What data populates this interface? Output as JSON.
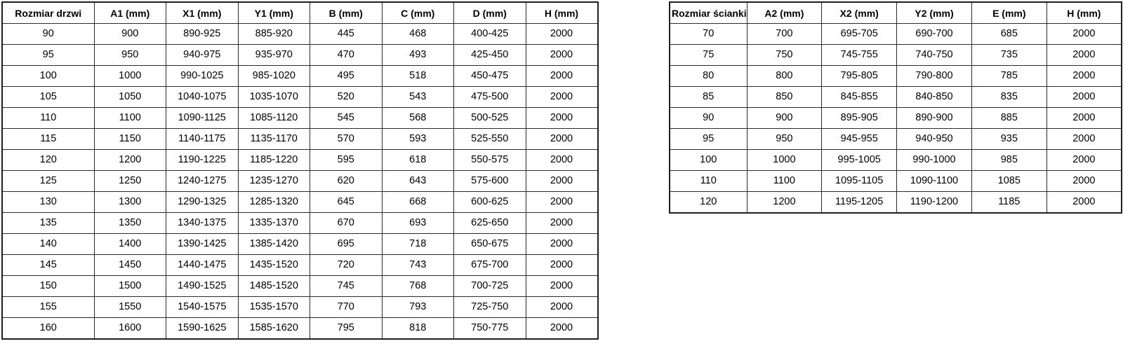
{
  "colors": {
    "background": "#ffffff",
    "border": "#2b2b2b",
    "outer_border": "#1f1f1f",
    "text": "#000000"
  },
  "door_table": {
    "headers": [
      "Rozmiar drzwi",
      "A1 (mm)",
      "X1 (mm)",
      "Y1 (mm)",
      "B (mm)",
      "C (mm)",
      "D (mm)",
      "H (mm)"
    ],
    "rows": [
      [
        "90",
        "900",
        "890-925",
        "885-920",
        "445",
        "468",
        "400-425",
        "2000"
      ],
      [
        "95",
        "950",
        "940-975",
        "935-970",
        "470",
        "493",
        "425-450",
        "2000"
      ],
      [
        "100",
        "1000",
        "990-1025",
        "985-1020",
        "495",
        "518",
        "450-475",
        "2000"
      ],
      [
        "105",
        "1050",
        "1040-1075",
        "1035-1070",
        "520",
        "543",
        "475-500",
        "2000"
      ],
      [
        "110",
        "1100",
        "1090-1125",
        "1085-1120",
        "545",
        "568",
        "500-525",
        "2000"
      ],
      [
        "115",
        "1150",
        "1140-1175",
        "1135-1170",
        "570",
        "593",
        "525-550",
        "2000"
      ],
      [
        "120",
        "1200",
        "1190-1225",
        "1185-1220",
        "595",
        "618",
        "550-575",
        "2000"
      ],
      [
        "125",
        "1250",
        "1240-1275",
        "1235-1270",
        "620",
        "643",
        "575-600",
        "2000"
      ],
      [
        "130",
        "1300",
        "1290-1325",
        "1285-1320",
        "645",
        "668",
        "600-625",
        "2000"
      ],
      [
        "135",
        "1350",
        "1340-1375",
        "1335-1370",
        "670",
        "693",
        "625-650",
        "2000"
      ],
      [
        "140",
        "1400",
        "1390-1425",
        "1385-1420",
        "695",
        "718",
        "650-675",
        "2000"
      ],
      [
        "145",
        "1450",
        "1440-1475",
        "1435-1520",
        "720",
        "743",
        "675-700",
        "2000"
      ],
      [
        "150",
        "1500",
        "1490-1525",
        "1485-1520",
        "745",
        "768",
        "700-725",
        "2000"
      ],
      [
        "155",
        "1550",
        "1540-1575",
        "1535-1570",
        "770",
        "793",
        "725-750",
        "2000"
      ],
      [
        "160",
        "1600",
        "1590-1625",
        "1585-1620",
        "795",
        "818",
        "750-775",
        "2000"
      ]
    ]
  },
  "wall_table": {
    "headers": [
      "Rozmiar ścianki",
      "A2 (mm)",
      "X2 (mm)",
      "Y2 (mm)",
      "E (mm)",
      "H (mm)"
    ],
    "rows": [
      [
        "70",
        "700",
        "695-705",
        "690-700",
        "685",
        "2000"
      ],
      [
        "75",
        "750",
        "745-755",
        "740-750",
        "735",
        "2000"
      ],
      [
        "80",
        "800",
        "795-805",
        "790-800",
        "785",
        "2000"
      ],
      [
        "85",
        "850",
        "845-855",
        "840-850",
        "835",
        "2000"
      ],
      [
        "90",
        "900",
        "895-905",
        "890-900",
        "885",
        "2000"
      ],
      [
        "95",
        "950",
        "945-955",
        "940-950",
        "935",
        "2000"
      ],
      [
        "100",
        "1000",
        "995-1005",
        "990-1000",
        "985",
        "2000"
      ],
      [
        "110",
        "1100",
        "1095-1105",
        "1090-1100",
        "1085",
        "2000"
      ],
      [
        "120",
        "1200",
        "1195-1205",
        "1190-1200",
        "1185",
        "2000"
      ]
    ]
  }
}
